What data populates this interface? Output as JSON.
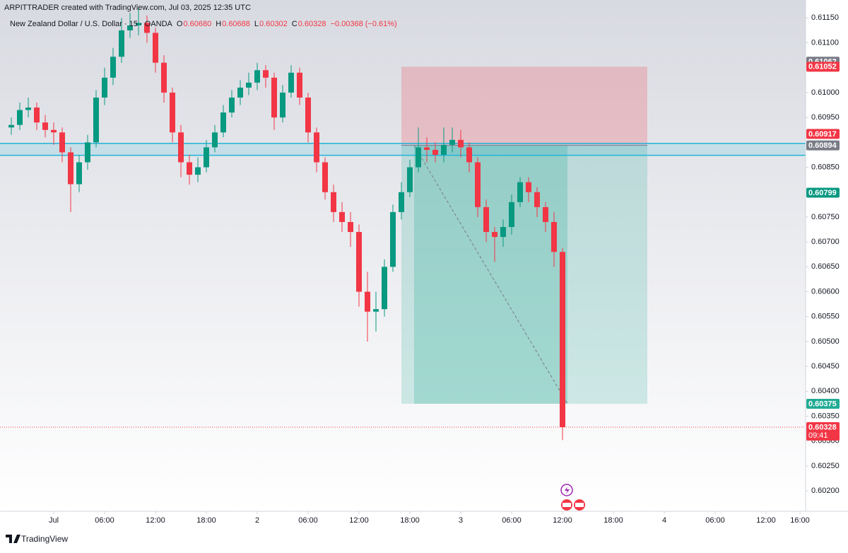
{
  "header": {
    "created": "ARPITTRADER created with TradingView.com, Jul 03, 2025 12:35 UTC"
  },
  "chart_data": {
    "type": "candlestick",
    "title": "New Zealand Dollar / U.S. Dollar · 15 · OANDA",
    "ohlc_legend": [
      {
        "label": "O",
        "value": "0.60680"
      },
      {
        "label": "H",
        "value": "0.60688"
      },
      {
        "label": "L",
        "value": "0.60302"
      },
      {
        "label": "C",
        "value": "0.60328"
      }
    ],
    "change": "−0.00368 (−0.61%)",
    "x": [
      "2025-06-30T19:00",
      "2025-06-30T20:00",
      "2025-06-30T21:00",
      "2025-06-30T22:00",
      "2025-06-30T23:00",
      "2025-07-01T00:00",
      "2025-07-01T01:00",
      "2025-07-01T02:00",
      "2025-07-01T03:00",
      "2025-07-01T04:00",
      "2025-07-01T05:00",
      "2025-07-01T06:00",
      "2025-07-01T07:00",
      "2025-07-01T08:00",
      "2025-07-01T09:00",
      "2025-07-01T10:00",
      "2025-07-01T11:00",
      "2025-07-01T12:00",
      "2025-07-01T13:00",
      "2025-07-01T14:00",
      "2025-07-01T15:00",
      "2025-07-01T16:00",
      "2025-07-01T17:00",
      "2025-07-01T18:00",
      "2025-07-01T19:00",
      "2025-07-01T20:00",
      "2025-07-01T21:00",
      "2025-07-01T22:00",
      "2025-07-01T23:00",
      "2025-07-02T00:00",
      "2025-07-02T01:00",
      "2025-07-02T02:00",
      "2025-07-02T03:00",
      "2025-07-02T04:00",
      "2025-07-02T05:00",
      "2025-07-02T06:00",
      "2025-07-02T07:00",
      "2025-07-02T08:00",
      "2025-07-02T09:00",
      "2025-07-02T10:00",
      "2025-07-02T11:00",
      "2025-07-02T12:00",
      "2025-07-02T13:00",
      "2025-07-02T14:00",
      "2025-07-02T15:00",
      "2025-07-02T16:00",
      "2025-07-02T17:00",
      "2025-07-02T18:00",
      "2025-07-02T19:00",
      "2025-07-02T20:00",
      "2025-07-02T21:00",
      "2025-07-02T22:00",
      "2025-07-02T23:00",
      "2025-07-03T00:00",
      "2025-07-03T01:00",
      "2025-07-03T02:00",
      "2025-07-03T03:00",
      "2025-07-03T04:00",
      "2025-07-03T05:00",
      "2025-07-03T06:00",
      "2025-07-03T07:00",
      "2025-07-03T08:00",
      "2025-07-03T09:00",
      "2025-07-03T10:00",
      "2025-07-03T11:00",
      "2025-07-03T12:00"
    ],
    "open": [
      0.6093,
      0.60935,
      0.60965,
      0.6097,
      0.6094,
      0.60925,
      0.6092,
      0.6088,
      0.60816,
      0.6086,
      0.609,
      0.6099,
      0.6103,
      0.61072,
      0.61125,
      0.61135,
      0.6114,
      0.6112,
      0.6106,
      0.61,
      0.6092,
      0.6086,
      0.60835,
      0.6085,
      0.6089,
      0.6092,
      0.6096,
      0.6099,
      0.6101,
      0.6102,
      0.61045,
      0.6103,
      0.6095,
      0.61,
      0.6104,
      0.6099,
      0.6092,
      0.6086,
      0.608,
      0.6076,
      0.6074,
      0.6072,
      0.606,
      0.6056,
      0.60565,
      0.6065,
      0.6076,
      0.608,
      0.6085,
      0.6089,
      0.60885,
      0.60875,
      0.60895,
      0.60905,
      0.6089,
      0.6086,
      0.6077,
      0.6072,
      0.6071,
      0.6073,
      0.6078,
      0.6082,
      0.608,
      0.6077,
      0.6074,
      0.6068
    ],
    "high": [
      0.6095,
      0.6098,
      0.6099,
      0.6098,
      0.60955,
      0.6094,
      0.6093,
      0.6089,
      0.60875,
      0.60915,
      0.61005,
      0.6105,
      0.6109,
      0.6115,
      0.6116,
      0.6117,
      0.61155,
      0.6113,
      0.61075,
      0.6101,
      0.60935,
      0.60875,
      0.6087,
      0.60905,
      0.60935,
      0.60975,
      0.61005,
      0.61025,
      0.6104,
      0.6106,
      0.61055,
      0.6104,
      0.61015,
      0.61055,
      0.6105,
      0.61,
      0.6093,
      0.6087,
      0.60815,
      0.6078,
      0.6076,
      0.60735,
      0.6064,
      0.606,
      0.60665,
      0.60775,
      0.6082,
      0.60865,
      0.6093,
      0.6091,
      0.609,
      0.6093,
      0.6093,
      0.60925,
      0.609,
      0.6087,
      0.60785,
      0.6073,
      0.60745,
      0.60795,
      0.6083,
      0.6083,
      0.6081,
      0.6078,
      0.6076,
      0.60688
    ],
    "low": [
      0.60915,
      0.60925,
      0.6095,
      0.60925,
      0.6091,
      0.60895,
      0.6086,
      0.6076,
      0.608,
      0.60845,
      0.6089,
      0.60975,
      0.61015,
      0.6106,
      0.6111,
      0.61115,
      0.611,
      0.6104,
      0.6098,
      0.609,
      0.6083,
      0.60815,
      0.6082,
      0.6084,
      0.6088,
      0.6091,
      0.6095,
      0.60975,
      0.60995,
      0.61005,
      0.6101,
      0.60925,
      0.6094,
      0.6099,
      0.60975,
      0.609,
      0.6084,
      0.60785,
      0.6074,
      0.6072,
      0.6069,
      0.6057,
      0.605,
      0.6052,
      0.6055,
      0.6064,
      0.60745,
      0.6079,
      0.6084,
      0.6086,
      0.6086,
      0.6086,
      0.6088,
      0.6087,
      0.6084,
      0.6075,
      0.607,
      0.6066,
      0.6069,
      0.60715,
      0.6077,
      0.6078,
      0.6075,
      0.6072,
      0.6065,
      0.60302
    ],
    "close": [
      0.60935,
      0.60965,
      0.6097,
      0.6094,
      0.60925,
      0.6092,
      0.6088,
      0.60816,
      0.6086,
      0.609,
      0.6099,
      0.6103,
      0.61072,
      0.61125,
      0.61135,
      0.6114,
      0.6112,
      0.6106,
      0.61,
      0.6092,
      0.6086,
      0.60835,
      0.6085,
      0.6089,
      0.6092,
      0.6096,
      0.6099,
      0.6101,
      0.6102,
      0.61045,
      0.6103,
      0.6095,
      0.61,
      0.6104,
      0.6099,
      0.6092,
      0.6086,
      0.608,
      0.6076,
      0.6074,
      0.6072,
      0.606,
      0.6056,
      0.60565,
      0.6065,
      0.6076,
      0.608,
      0.6085,
      0.6089,
      0.60885,
      0.60875,
      0.60895,
      0.60905,
      0.6089,
      0.6086,
      0.6077,
      0.6072,
      0.6071,
      0.6073,
      0.6078,
      0.6082,
      0.608,
      0.6077,
      0.6074,
      0.6068,
      0.60328
    ],
    "up_color": "#089981",
    "down_color": "#f23645",
    "xlim": [
      "2025-06-30T18:20",
      "2025-07-04T16:40"
    ],
    "xticks": [
      {
        "value": "2025-07-01T00:00",
        "label": "Jul"
      },
      {
        "value": "2025-07-01T06:00",
        "label": "06:00"
      },
      {
        "value": "2025-07-01T12:00",
        "label": "12:00"
      },
      {
        "value": "2025-07-01T18:00",
        "label": "18:00"
      },
      {
        "value": "2025-07-02T00:00",
        "label": "2"
      },
      {
        "value": "2025-07-02T06:00",
        "label": "06:00"
      },
      {
        "value": "2025-07-02T12:00",
        "label": "12:00"
      },
      {
        "value": "2025-07-02T18:00",
        "label": "18:00"
      },
      {
        "value": "2025-07-03T00:00",
        "label": "3"
      },
      {
        "value": "2025-07-03T06:00",
        "label": "06:00"
      },
      {
        "value": "2025-07-03T12:00",
        "label": "12:00"
      },
      {
        "value": "2025-07-03T18:00",
        "label": "18:00"
      },
      {
        "value": "2025-07-04T00:00",
        "label": "4"
      },
      {
        "value": "2025-07-04T06:00",
        "label": "06:00"
      },
      {
        "value": "2025-07-04T12:00",
        "label": "12:00"
      },
      {
        "value": "2025-07-04T16:00",
        "label": "16:00"
      }
    ],
    "ylim": [
      0.60159,
      0.61186
    ],
    "yticks": [
      {
        "value": 0.6115,
        "label": "0.61150"
      },
      {
        "value": 0.611,
        "label": "0.61100"
      },
      {
        "value": 0.61,
        "label": "0.61000"
      },
      {
        "value": 0.6095,
        "label": "0.60950"
      },
      {
        "value": 0.6085,
        "label": "0.60850"
      },
      {
        "value": 0.6075,
        "label": "0.60750"
      },
      {
        "value": 0.607,
        "label": "0.60700"
      },
      {
        "value": 0.6065,
        "label": "0.60650"
      },
      {
        "value": 0.606,
        "label": "0.60600"
      },
      {
        "value": 0.6055,
        "label": "0.60550"
      },
      {
        "value": 0.605,
        "label": "0.60500"
      },
      {
        "value": 0.6045,
        "label": "0.60450"
      },
      {
        "value": 0.604,
        "label": "0.60400"
      },
      {
        "value": 0.6035,
        "label": "0.60350"
      },
      {
        "value": 0.603,
        "label": "0.60300"
      },
      {
        "value": 0.6025,
        "label": "0.60250"
      },
      {
        "value": 0.602,
        "label": "0.60200"
      }
    ],
    "last_price": 0.60328,
    "countdown": "09:41",
    "zone": [
      0.60874,
      0.60898
    ],
    "zone_color": "#22b5d8",
    "position": {
      "stop": 0.61052,
      "entry": 0.60894,
      "target": 0.60375,
      "start": "2025-07-02T17:00",
      "end": "2025-07-03T22:00",
      "trade_start": "2025-07-02T18:30",
      "trade_end": "2025-07-03T12:35",
      "stop_color": "#f23645",
      "entry_color": "#787b86",
      "target_color": "#22ab94"
    },
    "price_labels": [
      {
        "value": 0.61062,
        "color": "#787b86"
      },
      {
        "value": 0.60917,
        "color": "#f23645"
      },
      {
        "value": 0.60799,
        "color": "#089981"
      }
    ]
  },
  "footer": {
    "brand": "TradingView"
  }
}
